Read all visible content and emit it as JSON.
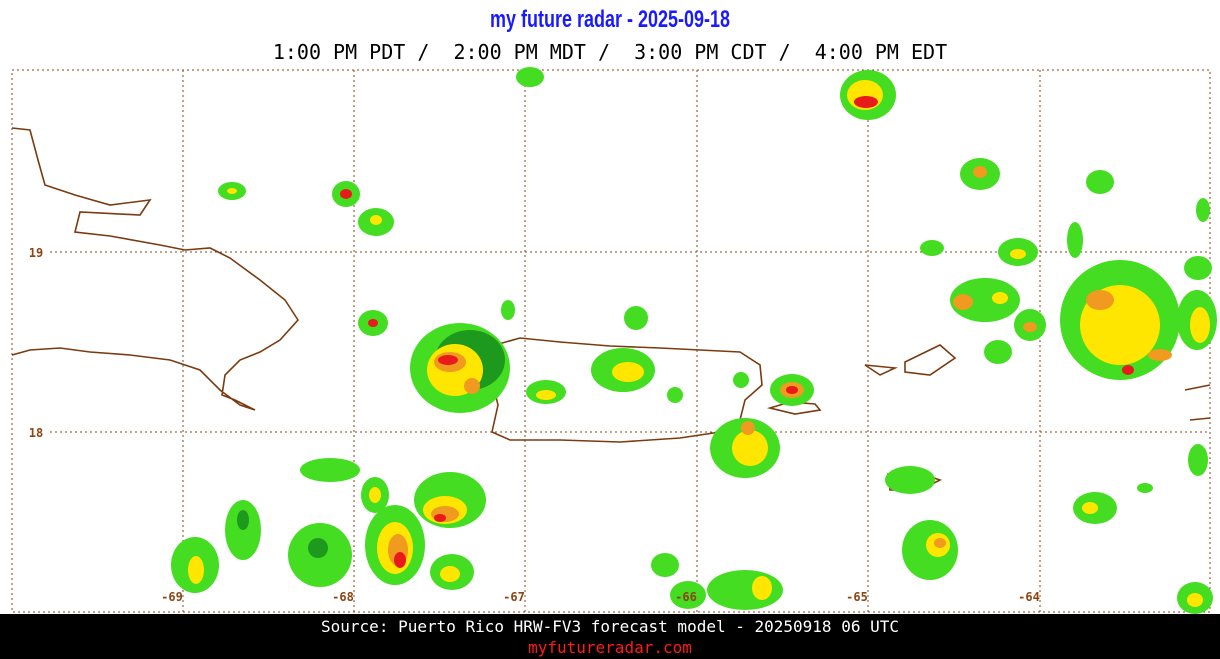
{
  "header": {
    "title": "my future radar - 2025-09-18",
    "times": "1:00 PM PDT /  2:00 PM MDT /  3:00 PM CDT /  4:00 PM EDT"
  },
  "map": {
    "lon_labels": [
      "-69",
      "-68",
      "-67",
      "-66",
      "-65",
      "-64"
    ],
    "lat_labels": [
      "19",
      "18"
    ]
  },
  "footer": {
    "source": "Source: Puerto Rico HRW-FV3 forecast model - 20250918 06 UTC",
    "url": "myfutureradar.com"
  }
}
